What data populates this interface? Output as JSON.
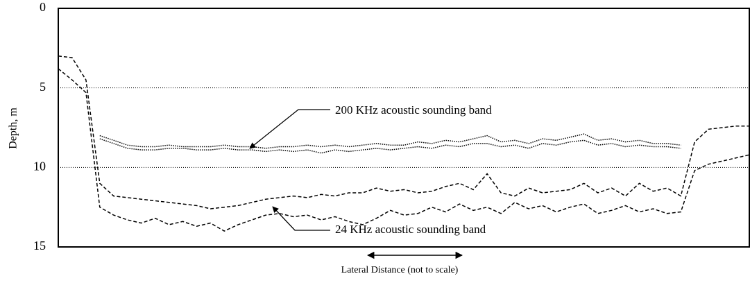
{
  "chart_data": {
    "type": "line",
    "y_label": "Depth, m",
    "x_label": "Lateral Distance (not to scale)",
    "annotations": [
      "200 KHz acoustic sounding band",
      "24 KHz acoustic sounding band"
    ],
    "x": [
      0,
      2,
      4,
      6,
      8,
      10,
      12,
      14,
      16,
      18,
      20,
      22,
      24,
      26,
      28,
      30,
      32,
      34,
      36,
      38,
      40,
      42,
      44,
      46,
      48,
      50,
      52,
      54,
      56,
      58,
      60,
      62,
      64,
      66,
      68,
      70,
      72,
      74,
      76,
      78,
      80,
      82,
      84,
      86,
      88,
      90,
      92,
      94,
      96,
      98,
      100
    ],
    "xlim": [
      0,
      100
    ],
    "ylim": [
      15,
      0
    ],
    "yinverted": true,
    "yticks": [
      0,
      5,
      10,
      15
    ],
    "grid": true,
    "series": [
      {
        "color": "#000000",
        "dash": "dashed",
        "values": [
          3.0,
          3.1,
          4.5,
          11.0,
          11.8,
          11.9,
          12.0,
          12.1,
          12.2,
          12.3,
          12.4,
          12.6,
          12.5,
          12.4,
          12.2,
          12.0,
          11.9,
          11.8,
          11.9,
          11.7,
          11.8,
          11.6,
          11.6,
          11.3,
          11.5,
          11.4,
          11.6,
          11.5,
          11.2,
          11.0,
          11.4,
          10.4,
          11.6,
          11.8,
          11.3,
          11.6,
          11.5,
          11.4,
          11.0,
          11.6,
          11.3,
          11.8,
          11.0,
          11.5,
          11.3,
          11.8,
          8.4,
          7.6,
          7.5,
          7.4,
          7.4
        ]
      },
      {
        "color": "#000000",
        "dash": "dashed",
        "values": [
          3.8,
          4.5,
          5.3,
          12.5,
          13.0,
          13.3,
          13.5,
          13.2,
          13.6,
          13.4,
          13.7,
          13.5,
          14.0,
          13.6,
          13.3,
          13.0,
          12.9,
          13.1,
          13.0,
          13.3,
          13.1,
          13.4,
          13.6,
          13.2,
          12.7,
          13.0,
          12.9,
          12.5,
          12.8,
          12.3,
          12.7,
          12.5,
          12.9,
          12.2,
          12.6,
          12.4,
          12.8,
          12.5,
          12.3,
          12.9,
          12.7,
          12.4,
          12.8,
          12.6,
          12.9,
          12.8,
          10.2,
          9.8,
          9.6,
          9.4,
          9.2
        ]
      },
      {
        "color": "#000000",
        "dash": "dotted",
        "values": [
          null,
          null,
          null,
          8.0,
          8.3,
          8.6,
          8.7,
          8.7,
          8.6,
          8.7,
          8.7,
          8.7,
          8.6,
          8.7,
          8.7,
          8.8,
          8.7,
          8.7,
          8.6,
          8.7,
          8.6,
          8.7,
          8.6,
          8.5,
          8.6,
          8.6,
          8.4,
          8.5,
          8.3,
          8.4,
          8.2,
          8.0,
          8.4,
          8.3,
          8.5,
          8.2,
          8.3,
          8.1,
          7.9,
          8.3,
          8.2,
          8.4,
          8.3,
          8.5,
          8.5,
          8.6,
          null,
          null,
          null,
          null,
          null
        ]
      },
      {
        "color": "#000000",
        "dash": "dotted",
        "values": [
          null,
          null,
          null,
          8.2,
          8.5,
          8.8,
          8.9,
          8.9,
          8.8,
          8.8,
          8.9,
          8.9,
          8.8,
          8.9,
          8.9,
          9.0,
          8.9,
          9.0,
          8.9,
          9.1,
          8.9,
          9.0,
          8.9,
          8.8,
          8.9,
          8.8,
          8.7,
          8.8,
          8.6,
          8.7,
          8.5,
          8.5,
          8.7,
          8.6,
          8.8,
          8.5,
          8.6,
          8.4,
          8.3,
          8.6,
          8.5,
          8.7,
          8.6,
          8.7,
          8.7,
          8.8,
          null,
          null,
          null,
          null,
          null
        ]
      }
    ]
  }
}
